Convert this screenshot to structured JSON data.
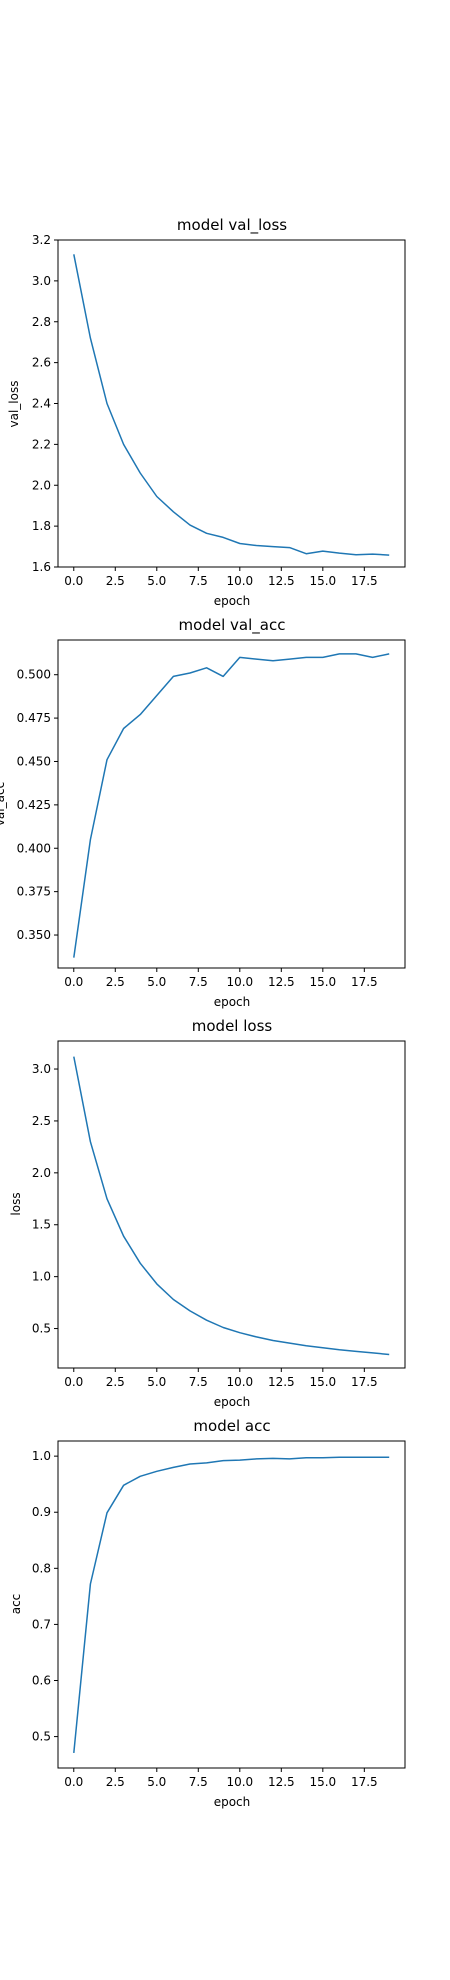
{
  "figure": {
    "line_color": "#1f77b4",
    "background": "#ffffff"
  },
  "chart_data": [
    {
      "type": "line",
      "title": "model val_loss",
      "xlabel": "epoch",
      "ylabel": "val_loss",
      "xlim": [
        -0.95,
        19.95
      ],
      "ylim": [
        1.6,
        3.2
      ],
      "xticks": [
        0,
        2.5,
        5,
        7.5,
        10,
        12.5,
        15,
        17.5
      ],
      "xtick_labels": [
        "0.0",
        "2.5",
        "5.0",
        "7.5",
        "10.0",
        "12.5",
        "15.0",
        "17.5"
      ],
      "yticks": [
        1.6,
        1.8,
        2.0,
        2.2,
        2.4,
        2.6,
        2.8,
        3.0,
        3.2
      ],
      "ytick_labels": [
        "1.6",
        "1.8",
        "2.0",
        "2.2",
        "2.4",
        "2.6",
        "2.8",
        "3.0",
        "3.2"
      ],
      "x": [
        0,
        1,
        2,
        3,
        4,
        5,
        6,
        7,
        8,
        9,
        10,
        11,
        12,
        13,
        14,
        15,
        16,
        17,
        18,
        19
      ],
      "y": [
        3.13,
        2.72,
        2.4,
        2.2,
        2.06,
        1.945,
        1.87,
        1.805,
        1.765,
        1.745,
        1.715,
        1.705,
        1.7,
        1.695,
        1.665,
        1.678,
        1.668,
        1.66,
        1.663,
        1.658
      ]
    },
    {
      "type": "line",
      "title": "model val_acc",
      "xlabel": "epoch",
      "ylabel": "val_acc",
      "xlim": [
        -0.95,
        19.95
      ],
      "ylim": [
        0.331,
        0.52
      ],
      "xticks": [
        0,
        2.5,
        5,
        7.5,
        10,
        12.5,
        15,
        17.5
      ],
      "xtick_labels": [
        "0.0",
        "2.5",
        "5.0",
        "7.5",
        "10.0",
        "12.5",
        "15.0",
        "17.5"
      ],
      "yticks": [
        0.35,
        0.375,
        0.4,
        0.425,
        0.45,
        0.475,
        0.5
      ],
      "ytick_labels": [
        "0.350",
        "0.375",
        "0.400",
        "0.425",
        "0.450",
        "0.475",
        "0.500"
      ],
      "x": [
        0,
        1,
        2,
        3,
        4,
        5,
        6,
        7,
        8,
        9,
        10,
        11,
        12,
        13,
        14,
        15,
        16,
        17,
        18,
        19
      ],
      "y": [
        0.337,
        0.405,
        0.451,
        0.469,
        0.477,
        0.488,
        0.499,
        0.501,
        0.504,
        0.499,
        0.51,
        0.509,
        0.508,
        0.509,
        0.51,
        0.51,
        0.512,
        0.512,
        0.51,
        0.512
      ]
    },
    {
      "type": "line",
      "title": "model loss",
      "xlabel": "epoch",
      "ylabel": "loss",
      "xlim": [
        -0.95,
        19.95
      ],
      "ylim": [
        0.12,
        3.27
      ],
      "xticks": [
        0,
        2.5,
        5,
        7.5,
        10,
        12.5,
        15,
        17.5
      ],
      "xtick_labels": [
        "0.0",
        "2.5",
        "5.0",
        "7.5",
        "10.0",
        "12.5",
        "15.0",
        "17.5"
      ],
      "yticks": [
        0.5,
        1.0,
        1.5,
        2.0,
        2.5,
        3.0
      ],
      "ytick_labels": [
        "0.5",
        "1.0",
        "1.5",
        "2.0",
        "2.5",
        "3.0"
      ],
      "x": [
        0,
        1,
        2,
        3,
        4,
        5,
        6,
        7,
        8,
        9,
        10,
        11,
        12,
        13,
        14,
        15,
        16,
        17,
        18,
        19
      ],
      "y": [
        3.12,
        2.3,
        1.75,
        1.39,
        1.13,
        0.93,
        0.78,
        0.67,
        0.58,
        0.51,
        0.46,
        0.42,
        0.385,
        0.36,
        0.335,
        0.315,
        0.295,
        0.28,
        0.265,
        0.25
      ]
    },
    {
      "type": "line",
      "title": "model acc",
      "xlabel": "epoch",
      "ylabel": "acc",
      "xlim": [
        -0.95,
        19.95
      ],
      "ylim": [
        0.444,
        1.027
      ],
      "xticks": [
        0,
        2.5,
        5,
        7.5,
        10,
        12.5,
        15,
        17.5
      ],
      "xtick_labels": [
        "0.0",
        "2.5",
        "5.0",
        "7.5",
        "10.0",
        "12.5",
        "15.0",
        "17.5"
      ],
      "yticks": [
        0.5,
        0.6,
        0.7,
        0.8,
        0.9,
        1.0
      ],
      "ytick_labels": [
        "0.5",
        "0.6",
        "0.7",
        "0.8",
        "0.9",
        "1.0"
      ],
      "x": [
        0,
        1,
        2,
        3,
        4,
        5,
        6,
        7,
        8,
        9,
        10,
        11,
        12,
        13,
        14,
        15,
        16,
        17,
        18,
        19
      ],
      "y": [
        0.471,
        0.772,
        0.899,
        0.948,
        0.964,
        0.973,
        0.98,
        0.986,
        0.988,
        0.992,
        0.993,
        0.995,
        0.996,
        0.995,
        0.997,
        0.997,
        0.998,
        0.998,
        0.998,
        0.998
      ]
    }
  ]
}
